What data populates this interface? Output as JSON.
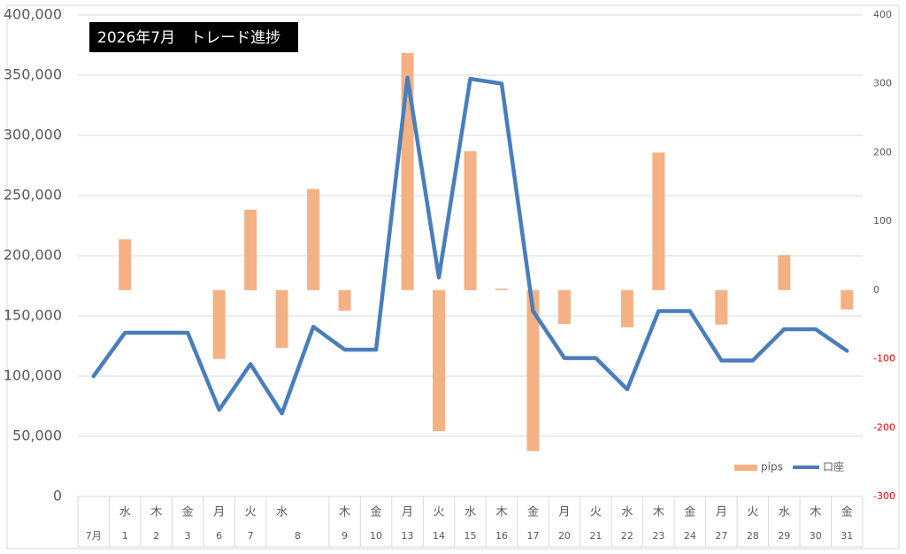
{
  "chart_data": {
    "type": "bar-line",
    "title": "2026年7月　トレード進捗",
    "weekdays": [
      null,
      "水",
      "木",
      "金",
      "月",
      "火",
      "水",
      null,
      "木",
      "金",
      "月",
      "火",
      "水",
      "木",
      "金",
      "月",
      "火",
      "水",
      "木",
      "金",
      "月",
      "火",
      "水",
      "木",
      "金"
    ],
    "categories": [
      "7月",
      "1",
      "2",
      "3",
      "6",
      "7",
      "8",
      null,
      "9",
      "10",
      "13",
      "14",
      "15",
      "16",
      "17",
      "20",
      "21",
      "22",
      "23",
      "24",
      "27",
      "28",
      "29",
      "30",
      "31"
    ],
    "series": [
      {
        "name": "pips",
        "type": "bar",
        "axis": "y2",
        "color": "#f4b183",
        "values": [
          null,
          74,
          null,
          null,
          -100,
          117,
          -84,
          147,
          -30,
          null,
          345,
          -205,
          202,
          2,
          -234,
          -49,
          null,
          -54,
          200,
          null,
          -50,
          null,
          51,
          null,
          -28
        ]
      },
      {
        "name": "口座",
        "type": "line",
        "axis": "y",
        "color": "#4a7ebb",
        "values": [
          100000,
          136000,
          136000,
          136000,
          72000,
          110000,
          69000,
          141000,
          122000,
          122000,
          348000,
          182000,
          347000,
          343000,
          154000,
          115000,
          115000,
          89000,
          154000,
          154000,
          113000,
          113000,
          139000,
          139000,
          121000
        ]
      }
    ],
    "ylim": [
      0,
      400000
    ],
    "yticks": [
      0,
      {
        "value": 50000,
        "label": "50,000"
      },
      {
        "value": 100000,
        "label": "100,000"
      },
      {
        "value": 150000,
        "label": "150,000"
      },
      {
        "value": 200000,
        "label": "200,000"
      },
      {
        "value": 250000,
        "label": "250,000"
      },
      {
        "value": 300000,
        "label": "300,000"
      },
      {
        "value": 350000,
        "label": "350,000"
      },
      {
        "value": 400000,
        "label": "400,000"
      }
    ],
    "y2lim": [
      -300,
      400
    ],
    "y2ticks": [
      -300,
      -200,
      -100,
      0,
      100,
      200,
      300,
      400
    ],
    "y2_negative_color": "#ff0000",
    "grid": true,
    "legend": "lower-right"
  }
}
